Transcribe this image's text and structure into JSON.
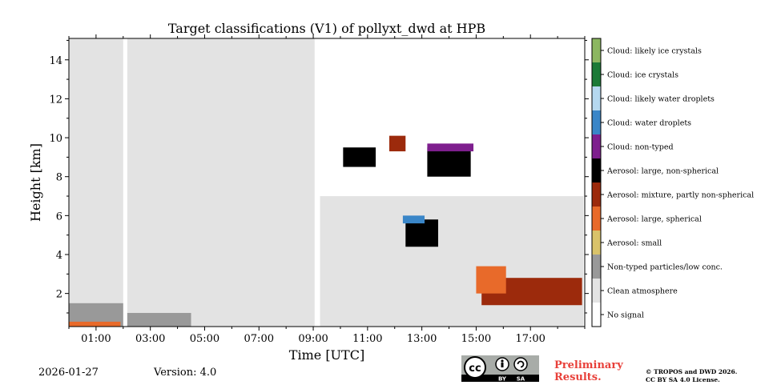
{
  "chart_data": {
    "type": "heatmap",
    "title": "Target classifications (V1) of pollyxt_dwd at HPB",
    "xlabel": "Time [UTC]",
    "ylabel": "Height [km]",
    "xlim": [
      0,
      19
    ],
    "ylim": [
      0.3,
      15.1
    ],
    "x_ticks": [
      "01:00",
      "03:00",
      "05:00",
      "07:00",
      "09:00",
      "11:00",
      "13:00",
      "15:00",
      "17:00"
    ],
    "x_tick_values": [
      1,
      3,
      5,
      7,
      9,
      11,
      13,
      15,
      17
    ],
    "y_ticks": [
      "2",
      "4",
      "6",
      "8",
      "10",
      "12",
      "14"
    ],
    "y_tick_values": [
      2,
      4,
      6,
      8,
      10,
      12,
      14
    ],
    "legend": [
      {
        "label": "Cloud: likely ice crystals",
        "color": "#8cb761"
      },
      {
        "label": "Cloud: ice crystals",
        "color": "#1b7a37"
      },
      {
        "label": "Cloud: likely water droplets",
        "color": "#b5d8f0"
      },
      {
        "label": "Cloud: water droplets",
        "color": "#3a86c8"
      },
      {
        "label": "Cloud: non-typed",
        "color": "#7e1f8e"
      },
      {
        "label": "Aerosol: large, non-spherical",
        "color": "#000000"
      },
      {
        "label": "Aerosol: mixture, partly non-spherical",
        "color": "#9c2a0c"
      },
      {
        "label": "Aerosol: large, spherical",
        "color": "#e86a2a"
      },
      {
        "label": "Aerosol: small",
        "color": "#d9c36a"
      },
      {
        "label": "Non-typed particles/low conc.",
        "color": "#999999"
      },
      {
        "label": "Clean atmosphere",
        "color": "#e3e3e3"
      },
      {
        "label": "No signal",
        "color": "#ffffff"
      }
    ],
    "regions": [
      {
        "class": "Clean atmosphere",
        "x": [
          0,
          2.0
        ],
        "y": [
          0.3,
          15.1
        ]
      },
      {
        "class": "Clean atmosphere",
        "x": [
          2.15,
          9.05
        ],
        "y": [
          0.3,
          15.1
        ]
      },
      {
        "class": "Clean atmosphere",
        "x": [
          9.25,
          18.95
        ],
        "y": [
          0.3,
          7.0
        ]
      },
      {
        "class": "Non-typed particles/low conc.",
        "x": [
          0,
          2.0
        ],
        "y": [
          0.3,
          1.5
        ]
      },
      {
        "class": "Non-typed particles/low conc.",
        "x": [
          2.15,
          4.5
        ],
        "y": [
          0.3,
          1.0
        ]
      },
      {
        "class": "Aerosol: large, spherical",
        "x": [
          0,
          1.9
        ],
        "y": [
          0.3,
          0.55
        ]
      },
      {
        "class": "Aerosol: large, non-spherical",
        "x": [
          12.4,
          13.6
        ],
        "y": [
          4.4,
          5.8
        ]
      },
      {
        "class": "Aerosol: mixture, partly non-spherical",
        "x": [
          15.2,
          18.9
        ],
        "y": [
          1.4,
          2.8
        ]
      },
      {
        "class": "Aerosol: large, spherical",
        "x": [
          15.0,
          16.1
        ],
        "y": [
          2.0,
          3.4
        ]
      },
      {
        "class": "Cloud: water droplets",
        "x": [
          12.3,
          13.1
        ],
        "y": [
          5.6,
          6.0
        ]
      },
      {
        "class": "Aerosol: large, non-spherical",
        "x": [
          13.2,
          14.8
        ],
        "y": [
          8.0,
          9.5
        ]
      },
      {
        "class": "Cloud: non-typed",
        "x": [
          13.2,
          14.9
        ],
        "y": [
          9.3,
          9.7
        ]
      },
      {
        "class": "Aerosol: large, non-spherical",
        "x": [
          10.1,
          11.3
        ],
        "y": [
          8.5,
          9.5
        ]
      },
      {
        "class": "Aerosol: mixture, partly non-spherical",
        "x": [
          11.8,
          12.4
        ],
        "y": [
          9.3,
          10.1
        ]
      }
    ]
  },
  "footer": {
    "date": "2026-01-27",
    "version": "Version: 4.0",
    "cc_by": "BY",
    "cc_sa": "SA",
    "preliminary_line1": "Preliminary",
    "preliminary_line2": "Results.",
    "copyright_line1": "© TROPOS and DWD 2026.",
    "copyright_line2": "CC BY SA 4.0 License."
  }
}
